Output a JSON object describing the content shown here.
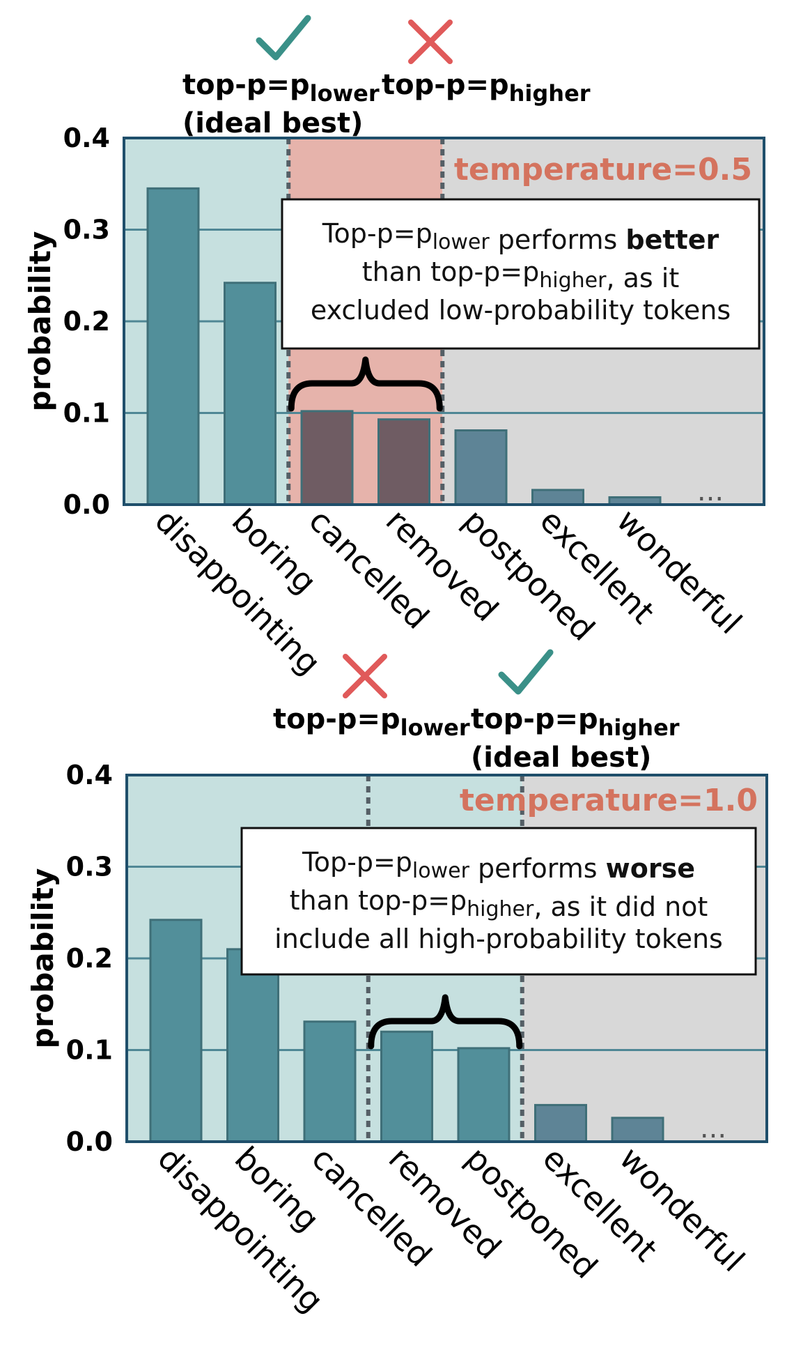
{
  "chart_data": [
    {
      "type": "bar",
      "categories": [
        "disappointing",
        "boring",
        "cancelled",
        "removed",
        "postponed",
        "excellent",
        "wonderful"
      ],
      "values": [
        0.345,
        0.242,
        0.102,
        0.093,
        0.081,
        0.016,
        0.008
      ],
      "ylabel": "probability",
      "ylim": [
        0,
        0.4
      ],
      "yticks": [
        "0.0",
        "0.1",
        "0.2",
        "0.3",
        "0.4"
      ],
      "ellipsis": "...",
      "temperature_label": "temperature=0.5",
      "lower_cutoff_after": 2,
      "higher_cutoff_after": 4,
      "highlight_region": "between",
      "markers": {
        "lower": {
          "symbol": "✓",
          "color": "#3a9088",
          "label": "top-p=p",
          "sub": "lower",
          "caption": "(ideal best)"
        },
        "higher": {
          "symbol": "✕",
          "color": "#e05a5a",
          "label": "top-p=p",
          "sub": "higher",
          "caption": ""
        }
      },
      "note": [
        [
          {
            "t": "Top-p=p"
          },
          {
            "t": "lower",
            "sub": true
          },
          {
            "t": " performs "
          },
          {
            "t": "better",
            "bold": true
          }
        ],
        [
          {
            "t": "than top-p=p"
          },
          {
            "t": "higher",
            "sub": true
          },
          {
            "t": ", as it"
          }
        ],
        [
          {
            "t": "excluded low-probability tokens"
          }
        ]
      ]
    },
    {
      "type": "bar",
      "categories": [
        "disappointing",
        "boring",
        "cancelled",
        "removed",
        "postponed",
        "excellent",
        "wonderful"
      ],
      "values": [
        0.242,
        0.21,
        0.131,
        0.12,
        0.102,
        0.04,
        0.026
      ],
      "ylabel": "probability",
      "ylim": [
        0,
        0.4
      ],
      "yticks": [
        "0.0",
        "0.1",
        "0.2",
        "0.3",
        "0.4"
      ],
      "ellipsis": "...",
      "temperature_label": "temperature=1.0",
      "lower_cutoff_after": 3,
      "higher_cutoff_after": 5,
      "highlight_region": "none",
      "markers": {
        "lower": {
          "symbol": "✕",
          "color": "#e05a5a",
          "label": "top-p=p",
          "sub": "lower",
          "caption": ""
        },
        "higher": {
          "symbol": "✓",
          "color": "#3a9088",
          "label": "top-p=p",
          "sub": "higher",
          "caption": "(ideal best)"
        }
      },
      "note": [
        [
          {
            "t": "Top-p=p"
          },
          {
            "t": "lower",
            "sub": true
          },
          {
            "t": " performs "
          },
          {
            "t": "worse",
            "bold": true
          }
        ],
        [
          {
            "t": "than top-p=p"
          },
          {
            "t": "higher",
            "sub": true
          },
          {
            "t": ", as it did not"
          }
        ],
        [
          {
            "t": "include all high-probability tokens"
          }
        ]
      ]
    }
  ],
  "colors": {
    "teal_bg": "#c6e0df",
    "red_bg": "#e6b3ab",
    "gray_bg": "#d8d8d8",
    "bar_teal": "#528f9a",
    "bar_red": "#6f5c63",
    "bar_gray": "#5e8496",
    "grid": "#4f8795",
    "frame": "#1f4f6b",
    "temperature": "#d4735e"
  }
}
